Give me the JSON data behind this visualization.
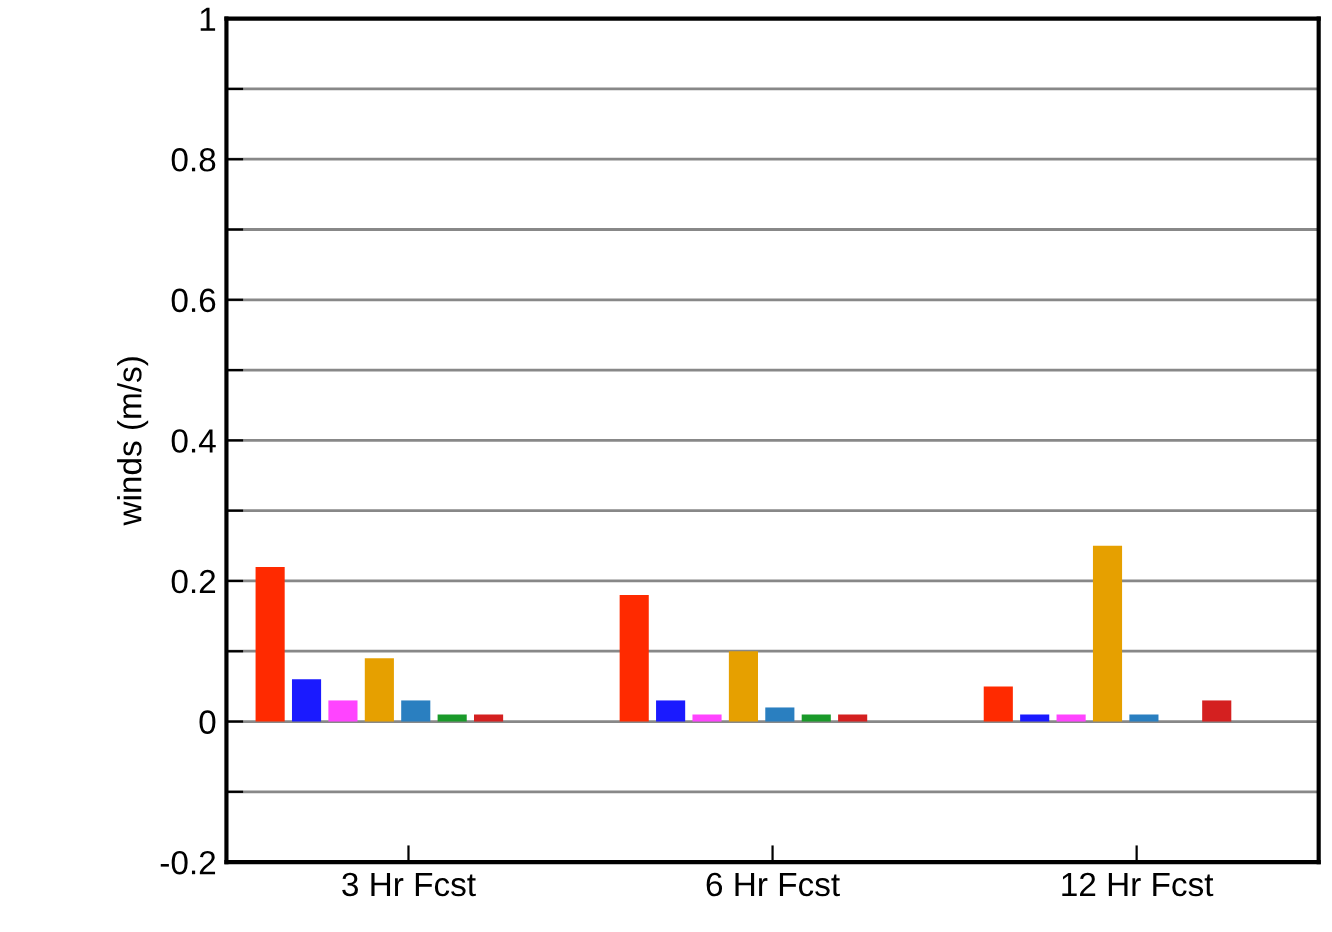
{
  "chart_data": {
    "type": "bar",
    "ylabel": "winds (m/s)",
    "categories": [
      "3 Hr Fcst",
      "6 Hr Fcst",
      "12 Hr Fcst"
    ],
    "series": [
      {
        "color": "#ff2a00",
        "values": [
          0.22,
          0.18,
          0.05
        ]
      },
      {
        "color": "#1a1aff",
        "values": [
          0.06,
          0.03,
          0.01
        ]
      },
      {
        "color": "#ff44ff",
        "values": [
          0.03,
          0.01,
          0.01
        ]
      },
      {
        "color": "#e6a000",
        "values": [
          0.09,
          0.1,
          0.25
        ]
      },
      {
        "color": "#2a7fc0",
        "values": [
          0.03,
          0.02,
          0.01
        ]
      },
      {
        "color": "#1a9a2a",
        "values": [
          0.01,
          0.01,
          null
        ]
      },
      {
        "color": "#d42020",
        "values": [
          0.01,
          0.01,
          0.03
        ]
      }
    ],
    "ylim": [
      -0.2,
      1
    ],
    "yticks": [
      -0.2,
      {
        "value": -0.1,
        "label": null
      },
      0,
      {
        "value": 0.1,
        "label": null
      },
      0.2,
      {
        "value": 0.3,
        "label": null
      },
      0.4,
      {
        "value": 0.5,
        "label": null
      },
      0.6,
      {
        "value": 0.7,
        "label": null
      },
      0.8,
      {
        "value": 0.9,
        "label": null
      },
      1
    ],
    "grid": "y"
  }
}
